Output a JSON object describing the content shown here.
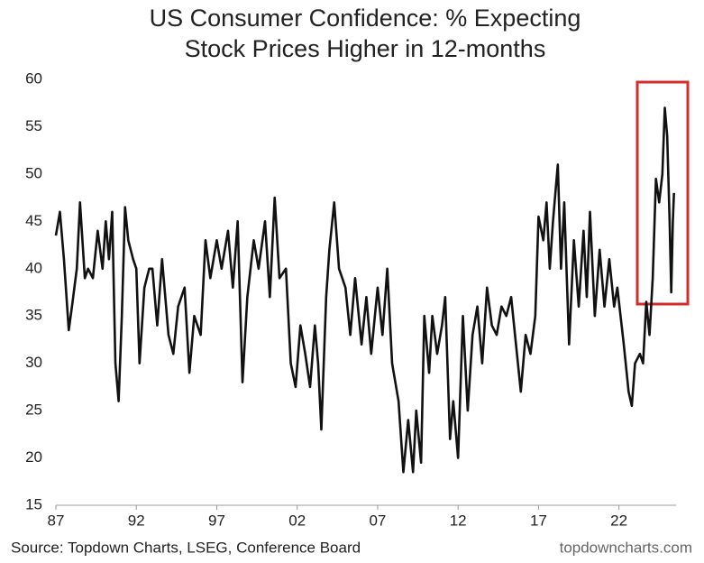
{
  "chart_data": {
    "type": "line",
    "title": "US Consumer Confidence: % Expecting",
    "subtitle": "Stock Prices Higher in 12-months",
    "source": "Source: Topdown Charts, LSEG, Conference Board",
    "watermark": "topdowncharts.com",
    "color": "#111111",
    "x": [
      1987.0,
      1987.25,
      1987.5,
      1987.8,
      1988.0,
      1988.3,
      1988.5,
      1988.8,
      1989.0,
      1989.3,
      1989.6,
      1989.9,
      1990.1,
      1990.3,
      1990.5,
      1990.7,
      1990.9,
      1991.1,
      1991.3,
      1991.5,
      1991.8,
      1992.0,
      1992.2,
      1992.5,
      1992.8,
      1993.0,
      1993.3,
      1993.6,
      1994.0,
      1994.3,
      1994.6,
      1995.0,
      1995.3,
      1995.6,
      1996.0,
      1996.3,
      1996.6,
      1997.0,
      1997.3,
      1997.7,
      1998.0,
      1998.3,
      1998.6,
      1998.9,
      1999.3,
      1999.6,
      2000.0,
      2000.3,
      2000.6,
      2000.9,
      2001.3,
      2001.6,
      2001.9,
      2002.2,
      2002.5,
      2002.8,
      2003.1,
      2003.3,
      2003.5,
      2003.8,
      2004.0,
      2004.3,
      2004.6,
      2005.0,
      2005.3,
      2005.6,
      2006.0,
      2006.3,
      2006.6,
      2007.0,
      2007.3,
      2007.6,
      2007.9,
      2008.3,
      2008.6,
      2008.9,
      2009.2,
      2009.4,
      2009.7,
      2009.9,
      2010.2,
      2010.4,
      2010.7,
      2011.0,
      2011.2,
      2011.5,
      2011.7,
      2012.0,
      2012.3,
      2012.6,
      2012.9,
      2013.2,
      2013.5,
      2013.8,
      2014.1,
      2014.4,
      2014.7,
      2015.0,
      2015.3,
      2015.6,
      2015.9,
      2016.2,
      2016.5,
      2016.8,
      2017.0,
      2017.3,
      2017.5,
      2017.7,
      2017.9,
      2018.2,
      2018.4,
      2018.6,
      2018.9,
      2019.2,
      2019.5,
      2019.8,
      2020.0,
      2020.2,
      2020.5,
      2020.8,
      2021.1,
      2021.4,
      2021.7,
      2021.9,
      2022.3,
      2022.6,
      2022.8,
      2023.0,
      2023.3,
      2023.5,
      2023.7,
      2023.9,
      2024.1,
      2024.3,
      2024.5,
      2024.7,
      2024.85,
      2025.0,
      2025.15,
      2025.25,
      2025.35,
      2025.42
    ],
    "values": [
      43.5,
      46,
      41,
      33.5,
      36,
      40,
      47,
      39,
      40,
      39,
      44,
      40,
      45,
      41,
      46,
      30,
      26,
      35,
      46.5,
      43,
      41,
      40,
      30,
      38,
      40,
      40,
      34,
      41,
      33,
      31,
      36,
      38,
      29,
      35,
      33,
      43,
      39,
      43,
      40,
      44,
      38,
      45,
      28,
      37,
      43,
      40,
      45,
      37,
      47.5,
      39,
      40,
      30,
      27.5,
      34,
      31,
      27.5,
      34,
      30,
      23,
      37,
      42,
      47,
      40,
      38,
      33,
      39,
      32,
      37,
      31,
      38,
      33,
      40,
      30,
      26,
      18.5,
      24,
      18.5,
      25,
      19.5,
      35,
      29,
      35,
      31,
      34,
      37,
      22,
      26,
      20,
      35,
      25,
      33,
      36,
      30,
      38,
      34,
      33,
      36,
      35,
      37,
      32,
      27,
      33,
      31,
      35,
      45.5,
      43,
      47,
      40,
      45,
      51,
      40,
      47,
      32,
      43,
      36,
      44,
      37,
      46,
      35,
      42,
      36,
      41,
      36,
      38,
      32,
      27,
      25.5,
      30,
      31,
      30,
      36.5,
      33,
      39,
      49.5,
      47,
      50,
      57,
      54,
      45,
      37.5,
      45,
      48
    ],
    "xlim": [
      1987,
      2025.55
    ],
    "ylim": [
      15,
      60
    ],
    "xticks": [
      {
        "value": 1987,
        "label": "87"
      },
      {
        "value": 1992,
        "label": "92"
      },
      {
        "value": 1997,
        "label": "97"
      },
      {
        "value": 2002,
        "label": "02"
      },
      {
        "value": 2007,
        "label": "07"
      },
      {
        "value": 2012,
        "label": "12"
      },
      {
        "value": 2017,
        "label": "17"
      },
      {
        "value": 2022,
        "label": "22"
      }
    ],
    "yticks": [
      15,
      20,
      25,
      30,
      35,
      40,
      45,
      50,
      55,
      60
    ]
  }
}
